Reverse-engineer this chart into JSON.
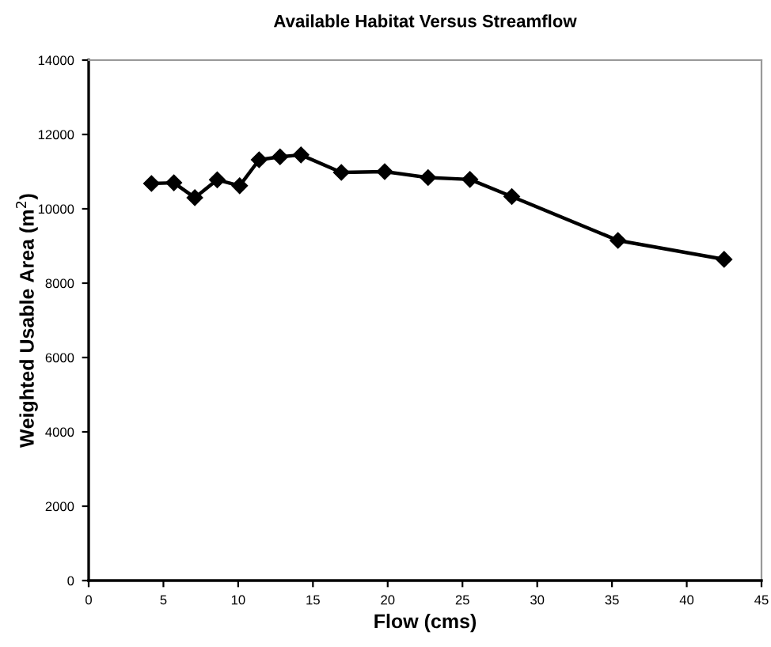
{
  "chart_data": {
    "type": "line",
    "title": "Available Habitat Versus Streamflow",
    "xlabel": "Flow (cms)",
    "ylabel": "Weighted Usable Area (m$^{2}$)",
    "x": [
      4.2,
      5.7,
      7.1,
      8.6,
      10.1,
      11.4,
      12.8,
      14.2,
      16.9,
      19.8,
      22.7,
      25.5,
      28.3,
      35.4,
      42.5
    ],
    "series": [
      {
        "color": "#000000",
        "values": [
          10680,
          10700,
          10300,
          10780,
          10620,
          11320,
          11400,
          11450,
          10980,
          11000,
          10840,
          10790,
          10330,
          9150,
          8640
        ]
      }
    ],
    "xlim": [
      0,
      45
    ],
    "xticks": [
      0,
      5,
      10,
      15,
      20,
      25,
      30,
      35,
      40,
      45
    ],
    "ylim": [
      0,
      14000
    ],
    "yticks": [
      0,
      2000,
      4000,
      6000,
      8000,
      10000,
      12000,
      14000
    ],
    "marker": "diamond",
    "line_style": "solid",
    "grid": false,
    "legend": false
  }
}
